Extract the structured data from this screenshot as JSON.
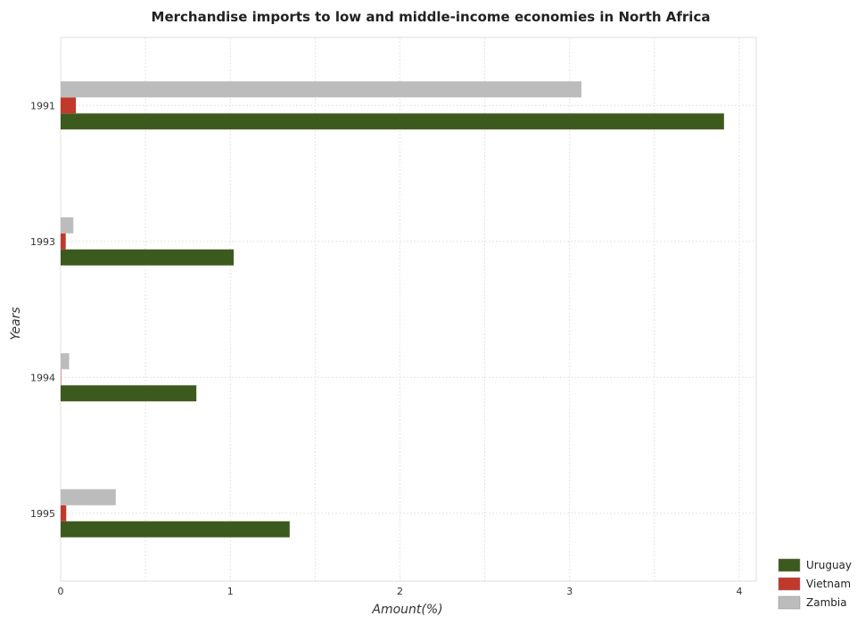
{
  "chart_data": {
    "type": "bar",
    "orientation": "horizontal",
    "title": "Merchandise imports to low and middle-income economies in North Africa",
    "xlabel": "Amount(%)",
    "ylabel": "Years",
    "categories": [
      "1991",
      "1993",
      "1994",
      "1995"
    ],
    "xlim": [
      0,
      4.1
    ],
    "xticks": [
      0,
      1,
      2,
      3,
      4
    ],
    "xtick_labels": [
      "0",
      "1",
      "2",
      "3",
      "4"
    ],
    "grid": true,
    "legend_position": "bottom-right",
    "series": [
      {
        "name": "Uruguay",
        "color": "#3d5a1e",
        "values": [
          3.91,
          1.02,
          0.8,
          1.35
        ]
      },
      {
        "name": "Vietnam",
        "color": "#c0392b",
        "values": [
          0.09,
          0.03,
          0.002,
          0.033
        ]
      },
      {
        "name": "Zambia",
        "color": "#bcbcbc",
        "values": [
          3.07,
          0.075,
          0.05,
          0.325
        ]
      }
    ]
  }
}
